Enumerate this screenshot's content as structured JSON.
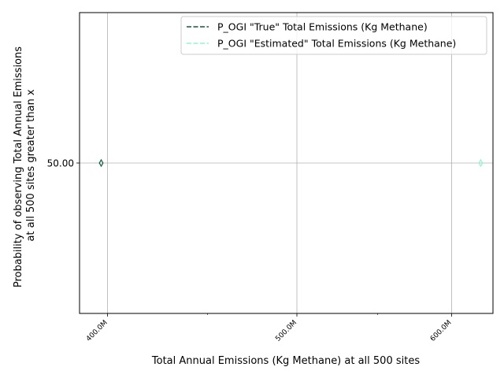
{
  "chart_data": {
    "type": "line",
    "title": "",
    "xlabel": "Total Annual Emissions (Kg Methane) at all 500 sites",
    "ylabel_lines": [
      "Probability of observing Total Annual Emissions",
      "at all 500 sites greater than x"
    ],
    "x_scale": "log",
    "xlim": [
      387000000,
      630000000
    ],
    "ylim": [
      45.0,
      55.0
    ],
    "x_major_ticks": [
      {
        "value": 400000000,
        "label": "400.0M"
      },
      {
        "value": 500000000,
        "label": "500.0M"
      },
      {
        "value": 600000000,
        "label": "600.0M"
      }
    ],
    "x_minor_ticks": [
      450000000,
      550000000
    ],
    "y_ticks": [
      {
        "value": 50.0,
        "label": "50.00"
      }
    ],
    "grid": true,
    "legend_position": "upper right",
    "series": [
      {
        "name": "P_OGI \"True\" Total Emissions (Kg Methane)",
        "color": "#0b5a3a",
        "linestyle": "dashed",
        "marker": "thin-diamond",
        "x": [
          397000000
        ],
        "y": [
          50.0
        ]
      },
      {
        "name": "P_OGI \"Estimated\" Total Emissions (Kg Methane)",
        "color": "#8ff5cf",
        "linestyle": "dashed",
        "marker": "thin-diamond",
        "x": [
          621000000
        ],
        "y": [
          50.0
        ]
      }
    ]
  }
}
